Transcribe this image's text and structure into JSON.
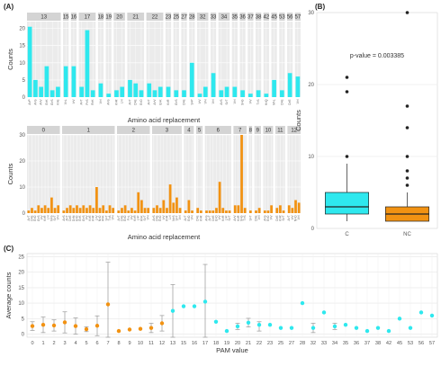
{
  "colors": {
    "cyan": "#2ee8ee",
    "orange": "#f29212",
    "panel_bg": "#ebebeb",
    "strip_bg": "#d4d4d4",
    "grid": "#ffffff",
    "text": "#333333",
    "axis_text": "#555555",
    "whisker": "#999999"
  },
  "chart_data": [
    {
      "id": "A-top",
      "panel_label": "(A)",
      "type": "bar",
      "ylabel": "Counts",
      "xlabel": "Amino acid replacement",
      "ylim": [
        0,
        22
      ],
      "yticks": [
        0,
        5,
        10,
        15,
        20
      ],
      "color": "cyan",
      "facets": [
        {
          "label": "13",
          "bars": [
            {
              "c": "A>P",
              "v": 20.5
            },
            {
              "c": "A>S",
              "v": 5
            },
            {
              "c": "A>V",
              "v": 3
            },
            {
              "c": "E>K",
              "v": 9
            },
            {
              "c": "G>S",
              "v": 2
            },
            {
              "c": "K>E",
              "v": 3
            }
          ]
        },
        {
          "label": "15",
          "bars": [
            {
              "c": "V>L",
              "v": 9
            }
          ]
        },
        {
          "label": "16",
          "bars": [
            {
              "c": "I>V",
              "v": 9
            }
          ]
        },
        {
          "label": "17",
          "bars": [
            {
              "c": "A>T",
              "v": 3
            },
            {
              "c": "P>S",
              "v": 19.5
            },
            {
              "c": "R>K",
              "v": 2
            }
          ]
        },
        {
          "label": "18",
          "bars": [
            {
              "c": "V>I",
              "v": 4
            }
          ]
        },
        {
          "label": "19",
          "bars": [
            {
              "c": "A>S",
              "v": 1
            }
          ]
        },
        {
          "label": "20",
          "bars": [
            {
              "c": "K>R",
              "v": 2
            },
            {
              "c": "L>I",
              "v": 3
            }
          ]
        },
        {
          "label": "21",
          "bars": [
            {
              "c": "A>T",
              "v": 5
            },
            {
              "c": "D>E",
              "v": 4
            },
            {
              "c": "E>D",
              "v": 2
            }
          ]
        },
        {
          "label": "22",
          "bars": [
            {
              "c": "A>T",
              "v": 4
            },
            {
              "c": "A>V",
              "v": 2
            },
            {
              "c": "E>K",
              "v": 3
            }
          ]
        },
        {
          "label": "23",
          "bars": [
            {
              "c": "K>R",
              "v": 3
            }
          ]
        },
        {
          "label": "25",
          "bars": [
            {
              "c": "G>S",
              "v": 2
            }
          ]
        },
        {
          "label": "27",
          "bars": [
            {
              "c": "D>E",
              "v": 2
            }
          ]
        },
        {
          "label": "28",
          "bars": [
            {
              "c": "S>P",
              "v": 10
            }
          ]
        },
        {
          "label": "32",
          "bars": [
            {
              "c": "I>V",
              "v": 1
            },
            {
              "c": "V>I",
              "v": 3
            }
          ]
        },
        {
          "label": "33",
          "bars": [
            {
              "c": "V>I",
              "v": 7
            }
          ]
        },
        {
          "label": "34",
          "bars": [
            {
              "c": "A>S",
              "v": 2
            },
            {
              "c": "S>T",
              "v": 3
            }
          ]
        },
        {
          "label": "35",
          "bars": [
            {
              "c": "V>I",
              "v": 3
            }
          ]
        },
        {
          "label": "36",
          "bars": [
            {
              "c": "S>G",
              "v": 2
            }
          ]
        },
        {
          "label": "37",
          "bars": [
            {
              "c": "I>V",
              "v": 1
            }
          ]
        },
        {
          "label": "38",
          "bars": [
            {
              "c": "T>S",
              "v": 2
            }
          ]
        },
        {
          "label": "42",
          "bars": [
            {
              "c": "H>Q",
              "v": 1
            }
          ]
        },
        {
          "label": "45",
          "bars": [
            {
              "c": "M>L",
              "v": 5
            }
          ]
        },
        {
          "label": "53",
          "bars": [
            {
              "c": "D>E",
              "v": 2
            }
          ]
        },
        {
          "label": "56",
          "bars": [
            {
              "c": "D>E",
              "v": 7
            }
          ]
        },
        {
          "label": "57",
          "bars": [
            {
              "c": "V>I",
              "v": 6
            }
          ]
        }
      ]
    },
    {
      "id": "A-bottom",
      "type": "bar",
      "ylabel": "Counts",
      "xlabel": "Amino acid replacement",
      "ylim": [
        0,
        30
      ],
      "yticks": [
        0,
        10,
        20,
        30
      ],
      "color": "orange",
      "facets": [
        {
          "label": "0",
          "bars": [
            {
              "c": "A>T",
              "v": 1
            },
            {
              "c": "D>E",
              "v": 2
            },
            {
              "c": "E>D",
              "v": 1
            },
            {
              "c": "G>S",
              "v": 3
            },
            {
              "c": "I>V",
              "v": 2
            },
            {
              "c": "K>R",
              "v": 3
            },
            {
              "c": "L>I",
              "v": 2
            },
            {
              "c": "N>S",
              "v": 6
            },
            {
              "c": "S>T",
              "v": 2
            },
            {
              "c": "V>I",
              "v": 3
            }
          ]
        },
        {
          "label": "1",
          "bars": [
            {
              "c": "A>S",
              "v": 1
            },
            {
              "c": "A>T",
              "v": 2
            },
            {
              "c": "D>E",
              "v": 3
            },
            {
              "c": "D>N",
              "v": 2
            },
            {
              "c": "E>D",
              "v": 3
            },
            {
              "c": "E>K",
              "v": 2
            },
            {
              "c": "G>S",
              "v": 3
            },
            {
              "c": "I>V",
              "v": 2
            },
            {
              "c": "K>E",
              "v": 3
            },
            {
              "c": "K>R",
              "v": 2
            },
            {
              "c": "L>V",
              "v": 10
            },
            {
              "c": "N>D",
              "v": 2
            },
            {
              "c": "R>K",
              "v": 3
            },
            {
              "c": "S>T",
              "v": 1
            },
            {
              "c": "T>A",
              "v": 3
            },
            {
              "c": "V>I",
              "v": 2
            }
          ]
        },
        {
          "label": "2",
          "bars": [
            {
              "c": "A>T",
              "v": 1
            },
            {
              "c": "D>E",
              "v": 2
            },
            {
              "c": "E>D",
              "v": 3
            },
            {
              "c": "F>L",
              "v": 1
            },
            {
              "c": "I>V",
              "v": 2
            },
            {
              "c": "K>R",
              "v": 1
            },
            {
              "c": "L>F",
              "v": 8
            },
            {
              "c": "R>K",
              "v": 5
            },
            {
              "c": "S>T",
              "v": 2
            },
            {
              "c": "V>I",
              "v": 2
            }
          ]
        },
        {
          "label": "3",
          "bars": [
            {
              "c": "A>S",
              "v": 2
            },
            {
              "c": "D>E",
              "v": 3
            },
            {
              "c": "E>D",
              "v": 2
            },
            {
              "c": "I>V",
              "v": 5
            },
            {
              "c": "K>R",
              "v": 2
            },
            {
              "c": "L>I",
              "v": 11
            },
            {
              "c": "N>S",
              "v": 4
            },
            {
              "c": "S>T",
              "v": 6
            },
            {
              "c": "V>I",
              "v": 2
            }
          ]
        },
        {
          "label": "4",
          "bars": [
            {
              "c": "A>T",
              "v": 1
            },
            {
              "c": "E>D",
              "v": 5
            },
            {
              "c": "V>I",
              "v": 1
            }
          ]
        },
        {
          "label": "5",
          "bars": [
            {
              "c": "D>E",
              "v": 2
            },
            {
              "c": "K>R",
              "v": 1
            }
          ]
        },
        {
          "label": "6",
          "bars": [
            {
              "c": "A>S",
              "v": 1
            },
            {
              "c": "A>T",
              "v": 1
            },
            {
              "c": "D>E",
              "v": 1
            },
            {
              "c": "E>D",
              "v": 2
            },
            {
              "c": "I>V",
              "v": 12
            },
            {
              "c": "K>R",
              "v": 2
            },
            {
              "c": "L>F",
              "v": 1
            },
            {
              "c": "S>T",
              "v": 1
            }
          ]
        },
        {
          "label": "7",
          "bars": [
            {
              "c": "A>V",
              "v": 3
            },
            {
              "c": "K>R",
              "v": 3
            },
            {
              "c": "S>G",
              "v": 30
            },
            {
              "c": "T>S",
              "v": 2
            }
          ]
        },
        {
          "label": "8",
          "bars": [
            {
              "c": "S>T",
              "v": 1
            }
          ]
        },
        {
          "label": "9",
          "bars": [
            {
              "c": "D>E",
              "v": 1
            },
            {
              "c": "V>I",
              "v": 2
            }
          ]
        },
        {
          "label": "10",
          "bars": [
            {
              "c": "A>S",
              "v": 1
            },
            {
              "c": "E>D",
              "v": 1
            },
            {
              "c": "I>V",
              "v": 3
            }
          ]
        },
        {
          "label": "11",
          "bars": [
            {
              "c": "D>E",
              "v": 2
            },
            {
              "c": "K>R",
              "v": 3
            },
            {
              "c": "S>T",
              "v": 1
            }
          ]
        },
        {
          "label": "12",
          "bars": [
            {
              "c": "A>T",
              "v": 3
            },
            {
              "c": "I>V",
              "v": 2
            },
            {
              "c": "N>D",
              "v": 5
            },
            {
              "c": "V>I",
              "v": 4
            }
          ]
        }
      ]
    },
    {
      "id": "B",
      "panel_label": "(B)",
      "type": "box",
      "ylabel": "Counts",
      "ylim": [
        0,
        30
      ],
      "yticks": [
        0,
        10,
        20,
        30
      ],
      "annotation": "p-value = 0.003385",
      "groups": [
        {
          "name": "C",
          "color": "cyan",
          "whisker_low": 1,
          "q1": 2,
          "median": 3,
          "q3": 5,
          "whisker_high": 9,
          "outliers": [
            10,
            19,
            21
          ]
        },
        {
          "name": "NC",
          "color": "orange",
          "whisker_low": 1,
          "q1": 1,
          "median": 2,
          "q3": 3,
          "whisker_high": 5,
          "outliers": [
            6,
            7,
            8,
            10,
            14,
            17,
            30
          ]
        }
      ]
    },
    {
      "id": "C",
      "panel_label": "(C)",
      "type": "scatter",
      "ylabel": "Average counts",
      "xlabel": "PAM value",
      "ylim": [
        -1,
        26
      ],
      "yticks": [
        0,
        5,
        10,
        15,
        20,
        25
      ],
      "points": [
        {
          "pam": "0",
          "y": 2.6,
          "lo": 1.2,
          "hi": 4.0,
          "g": "NC"
        },
        {
          "pam": "1",
          "y": 3.0,
          "lo": 0.5,
          "hi": 5.5,
          "g": "NC"
        },
        {
          "pam": "2",
          "y": 2.8,
          "lo": 1.0,
          "hi": 4.6,
          "g": "NC"
        },
        {
          "pam": "3",
          "y": 3.8,
          "lo": 0.4,
          "hi": 7.2,
          "g": "NC"
        },
        {
          "pam": "4",
          "y": 2.6,
          "lo": 0.0,
          "hi": 5.2,
          "g": "NC"
        },
        {
          "pam": "5",
          "y": 1.6,
          "lo": 0.8,
          "hi": 2.4,
          "g": "NC"
        },
        {
          "pam": "6",
          "y": 2.7,
          "lo": -0.5,
          "hi": 5.9,
          "g": "NC"
        },
        {
          "pam": "7",
          "y": 9.6,
          "lo": -4.0,
          "hi": 23.2,
          "g": "NC"
        },
        {
          "pam": "8",
          "y": 1.0,
          "lo": null,
          "hi": null,
          "g": "NC"
        },
        {
          "pam": "9",
          "y": 1.5,
          "lo": null,
          "hi": null,
          "g": "NC"
        },
        {
          "pam": "10",
          "y": 1.7,
          "lo": null,
          "hi": null,
          "g": "NC"
        },
        {
          "pam": "11",
          "y": 2.0,
          "lo": 0.5,
          "hi": 3.5,
          "g": "NC"
        },
        {
          "pam": "12",
          "y": 3.5,
          "lo": 1.0,
          "hi": 6.0,
          "g": "NC"
        },
        {
          "pam": "13",
          "y": 7.5,
          "lo": -1.0,
          "hi": 16.0,
          "g": "C"
        },
        {
          "pam": "15",
          "y": 9.0,
          "lo": null,
          "hi": null,
          "g": "C"
        },
        {
          "pam": "16",
          "y": 9.0,
          "lo": null,
          "hi": null,
          "g": "C"
        },
        {
          "pam": "17",
          "y": 10.5,
          "lo": -1.5,
          "hi": 22.5,
          "g": "C"
        },
        {
          "pam": "18",
          "y": 4.0,
          "lo": null,
          "hi": null,
          "g": "C"
        },
        {
          "pam": "19",
          "y": 1.0,
          "lo": null,
          "hi": null,
          "g": "C"
        },
        {
          "pam": "20",
          "y": 2.5,
          "lo": 1.5,
          "hi": 3.5,
          "g": "C"
        },
        {
          "pam": "21",
          "y": 3.7,
          "lo": 2.3,
          "hi": 5.1,
          "g": "C"
        },
        {
          "pam": "22",
          "y": 3.0,
          "lo": 1.0,
          "hi": 4.0,
          "g": "C"
        },
        {
          "pam": "23",
          "y": 3.0,
          "lo": null,
          "hi": null,
          "g": "C"
        },
        {
          "pam": "25",
          "y": 2.0,
          "lo": null,
          "hi": null,
          "g": "C"
        },
        {
          "pam": "27",
          "y": 2.0,
          "lo": null,
          "hi": null,
          "g": "C"
        },
        {
          "pam": "28",
          "y": 10.0,
          "lo": null,
          "hi": null,
          "g": "C"
        },
        {
          "pam": "32",
          "y": 2.0,
          "lo": 0.5,
          "hi": 3.5,
          "g": "C"
        },
        {
          "pam": "33",
          "y": 7.0,
          "lo": null,
          "hi": null,
          "g": "C"
        },
        {
          "pam": "34",
          "y": 2.5,
          "lo": 1.5,
          "hi": 3.5,
          "g": "C"
        },
        {
          "pam": "35",
          "y": 3.0,
          "lo": null,
          "hi": null,
          "g": "C"
        },
        {
          "pam": "36",
          "y": 2.0,
          "lo": null,
          "hi": null,
          "g": "C"
        },
        {
          "pam": "37",
          "y": 1.0,
          "lo": null,
          "hi": null,
          "g": "C"
        },
        {
          "pam": "38",
          "y": 2.0,
          "lo": null,
          "hi": null,
          "g": "C"
        },
        {
          "pam": "42",
          "y": 1.0,
          "lo": null,
          "hi": null,
          "g": "C"
        },
        {
          "pam": "45",
          "y": 5.0,
          "lo": null,
          "hi": null,
          "g": "C"
        },
        {
          "pam": "53",
          "y": 2.0,
          "lo": null,
          "hi": null,
          "g": "C"
        },
        {
          "pam": "56",
          "y": 7.0,
          "lo": null,
          "hi": null,
          "g": "C"
        },
        {
          "pam": "57",
          "y": 6.0,
          "lo": null,
          "hi": null,
          "g": "C"
        }
      ]
    }
  ]
}
